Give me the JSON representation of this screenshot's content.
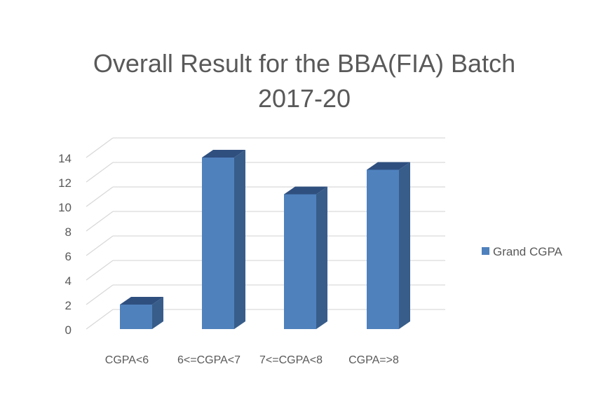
{
  "chart_data": {
    "type": "bar",
    "title_lines": [
      "Overall Result for the BBA(FIA) Batch",
      "2017-20"
    ],
    "categories": [
      "CGPA<6",
      "6<=CGPA<7",
      "7<=CGPA<8",
      "CGPA=>8"
    ],
    "series": [
      {
        "name": "Grand CGPA",
        "values": [
          2,
          14,
          11,
          13
        ],
        "color": "#4F81BD"
      }
    ],
    "y_ticks": [
      "0",
      "2",
      "4",
      "6",
      "8",
      "10",
      "12",
      "14"
    ],
    "ylim": [
      0,
      14
    ],
    "grid": true,
    "legend_position": "right",
    "style": "3d-column"
  }
}
